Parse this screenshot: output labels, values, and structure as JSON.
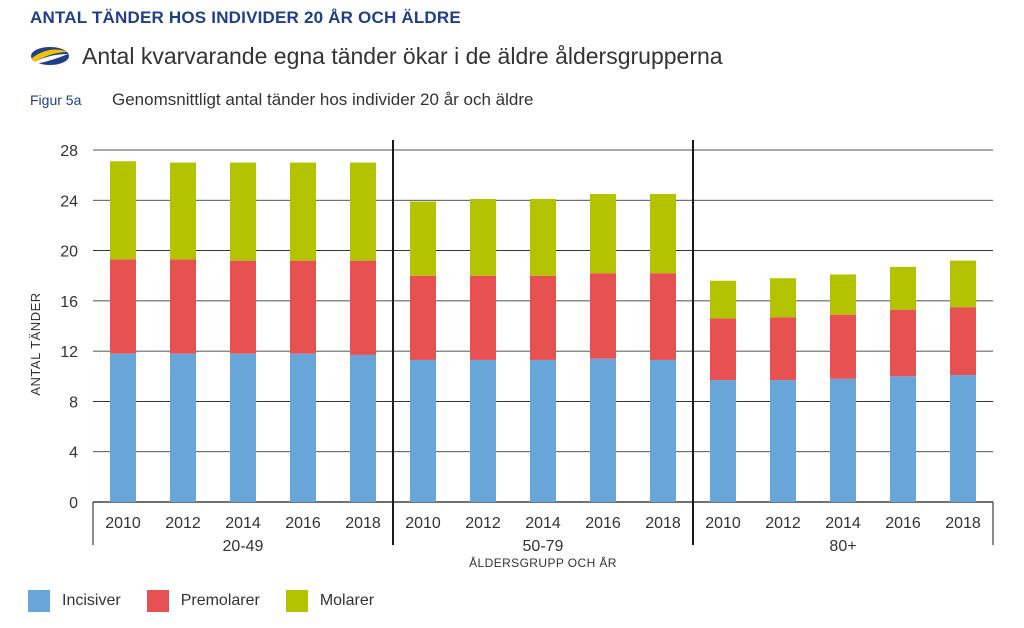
{
  "header": {
    "title": "ANTAL TÄNDER HOS INDIVIDER 20 ÅR OCH ÄLDRE",
    "subtitle": "Antal kvarvarande egna tänder ökar i de äldre åldersgrupperna",
    "figure_label": "Figur 5a",
    "figure_caption": "Genomsnittligt antal tänder hos individer 20 år och äldre"
  },
  "colors": {
    "incisiver": "#68a6d9",
    "premolarer": "#e85152",
    "molarer": "#b3c300",
    "accent": "#1f3f8a"
  },
  "chart_data": {
    "type": "bar",
    "stacked": true,
    "ylabel": "ANTAL TÄNDER",
    "xlabel": "ÅLDERSGRUPP OCH ÅR",
    "ylim": [
      0,
      28
    ],
    "yticks": [
      "0",
      "4",
      "8",
      "12",
      "16",
      "20",
      "24",
      "28"
    ],
    "grid": true,
    "groups": [
      {
        "name": "20-49",
        "years": [
          "2010",
          "2012",
          "2014",
          "2016",
          "2018"
        ],
        "incisiver": [
          11.8,
          11.8,
          11.8,
          11.8,
          11.7
        ],
        "premolarer": [
          7.5,
          7.5,
          7.4,
          7.4,
          7.5
        ],
        "molarer": [
          7.8,
          7.7,
          7.8,
          7.8,
          7.8
        ]
      },
      {
        "name": "50-79",
        "years": [
          "2010",
          "2012",
          "2014",
          "2016",
          "2018"
        ],
        "incisiver": [
          11.3,
          11.3,
          11.3,
          11.4,
          11.3
        ],
        "premolarer": [
          6.7,
          6.7,
          6.7,
          6.8,
          6.9
        ],
        "molarer": [
          5.9,
          6.1,
          6.1,
          6.3,
          6.3
        ]
      },
      {
        "name": "80+",
        "years": [
          "2010",
          "2012",
          "2014",
          "2016",
          "2018"
        ],
        "incisiver": [
          9.7,
          9.7,
          9.8,
          10.0,
          10.1
        ],
        "premolarer": [
          4.9,
          5.0,
          5.1,
          5.3,
          5.4
        ],
        "molarer": [
          3.0,
          3.1,
          3.2,
          3.4,
          3.7
        ]
      }
    ],
    "legend": [
      "Incisiver",
      "Premolarer",
      "Molarer"
    ],
    "legend_position": "bottom-left"
  }
}
